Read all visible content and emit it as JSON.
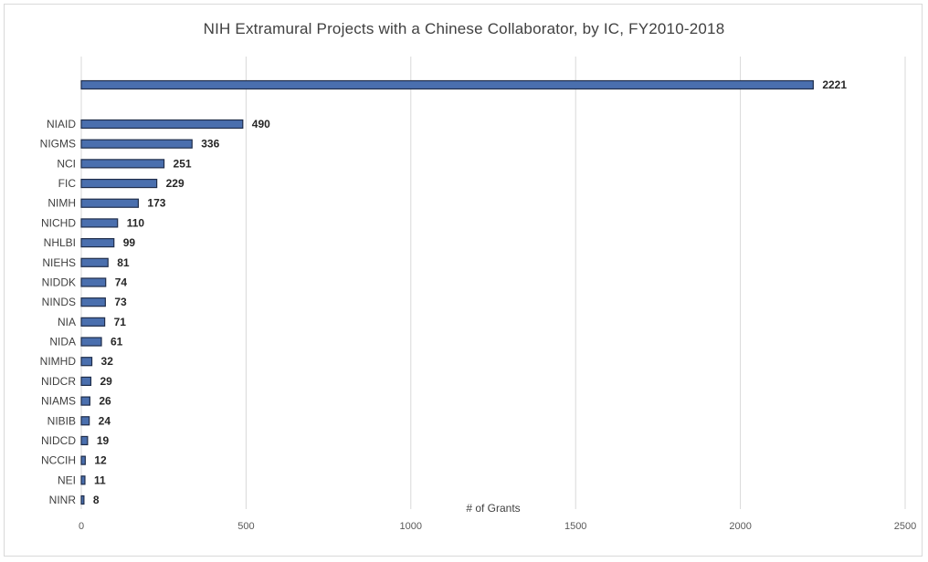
{
  "chart_data": {
    "type": "bar",
    "orientation": "horizontal",
    "title": "NIH Extramural Projects with a Chinese Collaborator, by IC, FY2010-2018",
    "xlabel": "# of Grants",
    "ylabel": "",
    "xlim": [
      0,
      2500
    ],
    "xticks": [
      0,
      500,
      1000,
      1500,
      2000,
      2500
    ],
    "grid": "vertical",
    "legend": "none",
    "bar_color": "#4a6fae",
    "bar_edge_color": "#1f2d4a",
    "categories": [
      "",
      "NIAID",
      "NIGMS",
      "NCI",
      "FIC",
      "NIMH",
      "NICHD",
      "NHLBI",
      "NIEHS",
      "NIDDK",
      "NINDS",
      "NIA",
      "NIDA",
      "NIMHD",
      "NIDCR",
      "NIAMS",
      "NIBIB",
      "NIDCD",
      "NCCIH",
      "NEI",
      "NINR"
    ],
    "values": [
      2221,
      490,
      336,
      251,
      229,
      173,
      110,
      99,
      81,
      74,
      73,
      71,
      61,
      32,
      29,
      26,
      24,
      19,
      12,
      11,
      8
    ]
  }
}
